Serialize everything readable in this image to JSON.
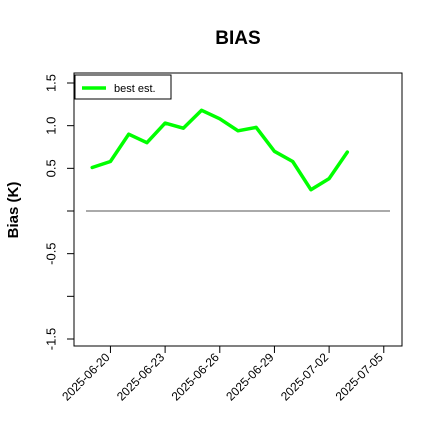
{
  "chart_data": {
    "type": "line",
    "title": "BIAS",
    "xlabel": "",
    "ylabel": "Bias (K)",
    "ylim": [
      -1.6,
      1.6
    ],
    "yticks": [
      -1.5,
      -1.0,
      -0.5,
      0.0,
      0.5,
      1.0,
      1.5
    ],
    "ytick_labels": [
      "-1.5",
      "",
      "-0.5",
      "",
      "0.5",
      "1.0",
      "1.5"
    ],
    "xlim": [
      "2025-06-18",
      "2025-07-06"
    ],
    "xticks": [
      "2025-06-20",
      "2025-06-23",
      "2025-06-26",
      "2025-06-29",
      "2025-07-02",
      "2025-07-05"
    ],
    "grid": false,
    "legend": "top-left",
    "reference_line": {
      "y": 0.0,
      "color": "#555555"
    },
    "series": [
      {
        "name": "best est.",
        "color": "#00ff00",
        "x": [
          "2025-06-19",
          "2025-06-20",
          "2025-06-21",
          "2025-06-22",
          "2025-06-23",
          "2025-06-24",
          "2025-06-25",
          "2025-06-26",
          "2025-06-27",
          "2025-06-28",
          "2025-06-29",
          "2025-06-30",
          "2025-07-01",
          "2025-07-02",
          "2025-07-03"
        ],
        "values": [
          0.51,
          0.58,
          0.9,
          0.8,
          1.03,
          0.97,
          1.18,
          1.08,
          0.94,
          0.98,
          0.7,
          0.58,
          0.25,
          0.38,
          0.69
        ]
      }
    ]
  }
}
